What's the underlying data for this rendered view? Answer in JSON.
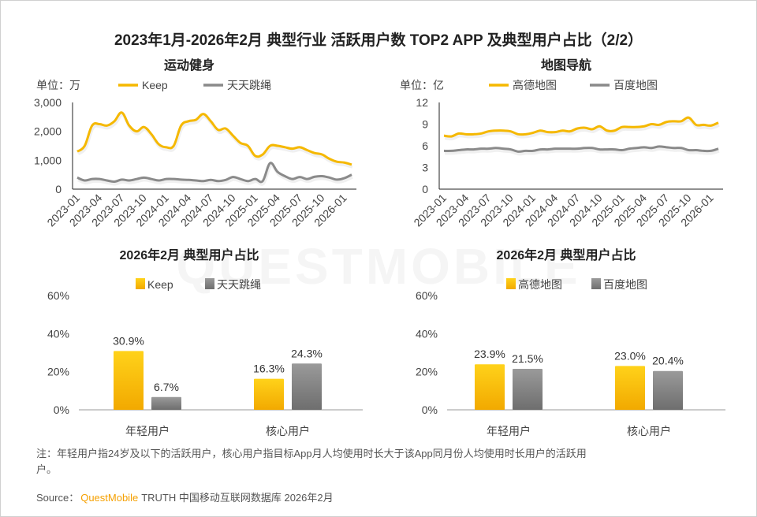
{
  "title": "2023年1月-2026年2月 典型行业 活跃用户数 TOP2 APP 及典型用户占比（2/2）",
  "watermark": "QUESTMOBILE",
  "colors": {
    "primary": "#F5B800",
    "secondary": "#8A8A8A"
  },
  "note": {
    "line1": "注：年轻用户指24岁及以下的活跃用户，核心用户指目标App月人均使用时长大于该App同月份人均使用时长用户的活跃用",
    "line2": "户。"
  },
  "source": {
    "label": "Source：",
    "brand": "QuestMobile",
    "rest": "TRUTH 中国移动互联网数据库 2026年2月"
  },
  "chart_data": [
    {
      "type": "line",
      "title": "运动健身",
      "unit": "单位：万",
      "ylim": [
        0,
        3000
      ],
      "yticks": [
        "0",
        "1,000",
        "2,000",
        "3,000"
      ],
      "ytick_values": [
        0,
        1000,
        2000,
        3000
      ],
      "xtick_labels": [
        "2023-01",
        "2023-04",
        "2023-07",
        "2023-10",
        "2024-01",
        "2024-04",
        "2024-07",
        "2024-10",
        "2025-01",
        "2025-04",
        "2025-07",
        "2025-10",
        "2026-01"
      ],
      "x_start": "2023-01",
      "x_end": "2026-02",
      "grid": false,
      "legend": "top",
      "series": [
        {
          "name": "Keep",
          "color": "#F5B800",
          "values": [
            1300,
            1500,
            2200,
            2250,
            2200,
            2350,
            2650,
            2200,
            2000,
            2150,
            1900,
            1550,
            1450,
            1500,
            2200,
            2350,
            2400,
            2600,
            2350,
            2050,
            2100,
            1850,
            1600,
            1500,
            1150,
            1200,
            1500,
            1500,
            1450,
            1400,
            1450,
            1350,
            1250,
            1200,
            1050,
            950,
            920,
            850
          ]
        },
        {
          "name": "天天跳绳",
          "color": "#8A8A8A",
          "values": [
            400,
            300,
            350,
            350,
            300,
            260,
            330,
            300,
            350,
            400,
            350,
            300,
            350,
            350,
            330,
            320,
            300,
            280,
            320,
            280,
            320,
            420,
            350,
            280,
            350,
            280,
            900,
            600,
            450,
            350,
            420,
            350,
            430,
            450,
            400,
            330,
            380,
            500
          ]
        }
      ]
    },
    {
      "type": "line",
      "title": "地图导航",
      "unit": "单位：亿",
      "ylim": [
        0,
        12
      ],
      "yticks": [
        "0",
        "3",
        "6",
        "9",
        "12"
      ],
      "ytick_values": [
        0,
        3,
        6,
        9,
        12
      ],
      "xtick_labels": [
        "2023-01",
        "2023-04",
        "2023-07",
        "2023-10",
        "2024-01",
        "2024-04",
        "2024-07",
        "2024-10",
        "2025-01",
        "2025-04",
        "2025-07",
        "2025-10",
        "2026-01"
      ],
      "x_start": "2023-01",
      "x_end": "2026-02",
      "grid": false,
      "legend": "top",
      "series": [
        {
          "name": "高德地图",
          "color": "#F5B800",
          "values": [
            7.4,
            7.3,
            7.7,
            7.6,
            7.6,
            7.7,
            8.0,
            8.1,
            8.1,
            8.0,
            7.6,
            7.6,
            7.8,
            8.1,
            7.9,
            7.9,
            8.1,
            8.0,
            8.4,
            8.5,
            8.3,
            8.7,
            8.1,
            8.1,
            8.6,
            8.6,
            8.6,
            8.7,
            9.0,
            8.9,
            9.3,
            9.4,
            9.4,
            9.9,
            8.9,
            8.9,
            8.8,
            9.2
          ]
        },
        {
          "name": "百度地图",
          "color": "#8A8A8A",
          "values": [
            5.3,
            5.3,
            5.4,
            5.5,
            5.5,
            5.6,
            5.6,
            5.7,
            5.6,
            5.5,
            5.2,
            5.3,
            5.3,
            5.5,
            5.5,
            5.6,
            5.6,
            5.6,
            5.6,
            5.7,
            5.7,
            5.5,
            5.5,
            5.5,
            5.4,
            5.6,
            5.7,
            5.8,
            5.7,
            5.9,
            5.8,
            5.7,
            5.7,
            5.4,
            5.4,
            5.3,
            5.3,
            5.6
          ]
        }
      ]
    },
    {
      "type": "bar",
      "title": "2026年2月 典型用户占比",
      "categories": [
        "年轻用户",
        "核心用户"
      ],
      "ylim": [
        0,
        60
      ],
      "yticks": [
        "0%",
        "20%",
        "40%",
        "60%"
      ],
      "ytick_values": [
        0,
        20,
        40,
        60
      ],
      "grid": false,
      "legend": "top",
      "series": [
        {
          "name": "Keep",
          "color": "#F5B800",
          "values": [
            30.9,
            16.3
          ],
          "labels": [
            "30.9%",
            "16.3%"
          ]
        },
        {
          "name": "天天跳绳",
          "color": "#8A8A8A",
          "values": [
            6.7,
            24.3
          ],
          "labels": [
            "6.7%",
            "24.3%"
          ]
        }
      ]
    },
    {
      "type": "bar",
      "title": "2026年2月 典型用户占比",
      "categories": [
        "年轻用户",
        "核心用户"
      ],
      "ylim": [
        0,
        60
      ],
      "yticks": [
        "0%",
        "20%",
        "40%",
        "60%"
      ],
      "ytick_values": [
        0,
        20,
        40,
        60
      ],
      "grid": false,
      "legend": "top",
      "series": [
        {
          "name": "高德地图",
          "color": "#F5B800",
          "values": [
            23.9,
            23.0
          ],
          "labels": [
            "23.9%",
            "23.0%"
          ]
        },
        {
          "name": "百度地图",
          "color": "#8A8A8A",
          "values": [
            21.5,
            20.4
          ],
          "labels": [
            "21.5%",
            "20.4%"
          ]
        }
      ]
    }
  ]
}
